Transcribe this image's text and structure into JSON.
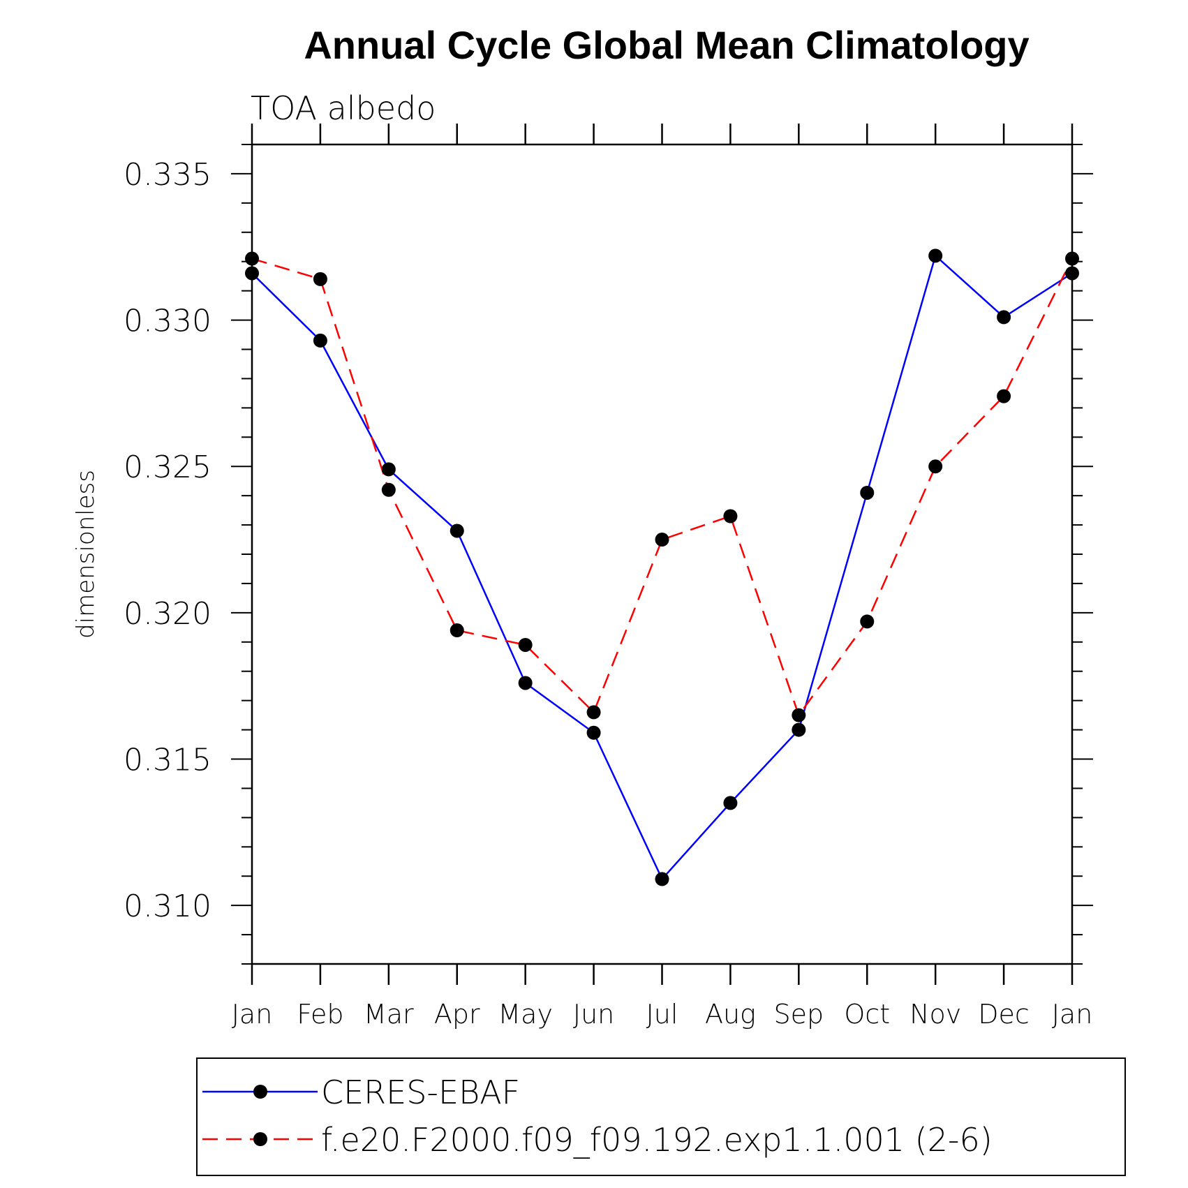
{
  "chart_data": {
    "type": "line",
    "title": "Annual Cycle Global Mean Climatology",
    "subtitle": "TOA albedo",
    "xlabel": "",
    "ylabel": "dimensionless",
    "categories": [
      "Jan",
      "Feb",
      "Mar",
      "Apr",
      "May",
      "Jun",
      "Jul",
      "Aug",
      "Sep",
      "Oct",
      "Nov",
      "Dec",
      "Jan"
    ],
    "yticks": [
      "0.310",
      "0.315",
      "0.320",
      "0.325",
      "0.330",
      "0.335"
    ],
    "ylim": [
      0.308,
      0.336
    ],
    "grid": false,
    "legend_position": "bottom",
    "series": [
      {
        "name": "CERES-EBAF",
        "color": "#0000ff",
        "line_style": "solid",
        "marker": "filled-circle",
        "values": [
          0.3316,
          0.3293,
          0.3249,
          0.3228,
          0.3176,
          0.3159,
          0.3109,
          0.3135,
          0.316,
          0.3241,
          0.3322,
          0.3301,
          0.3316
        ]
      },
      {
        "name": "f.e20.F2000.f09_f09.192.exp1.1.001 (2-6)",
        "color": "#ff0000",
        "line_style": "dashed",
        "marker": "filled-circle",
        "values": [
          0.3321,
          0.3314,
          0.3242,
          0.3194,
          0.3189,
          0.3166,
          0.3225,
          0.3233,
          0.3165,
          0.3197,
          0.325,
          0.3274,
          0.3321
        ]
      }
    ]
  }
}
